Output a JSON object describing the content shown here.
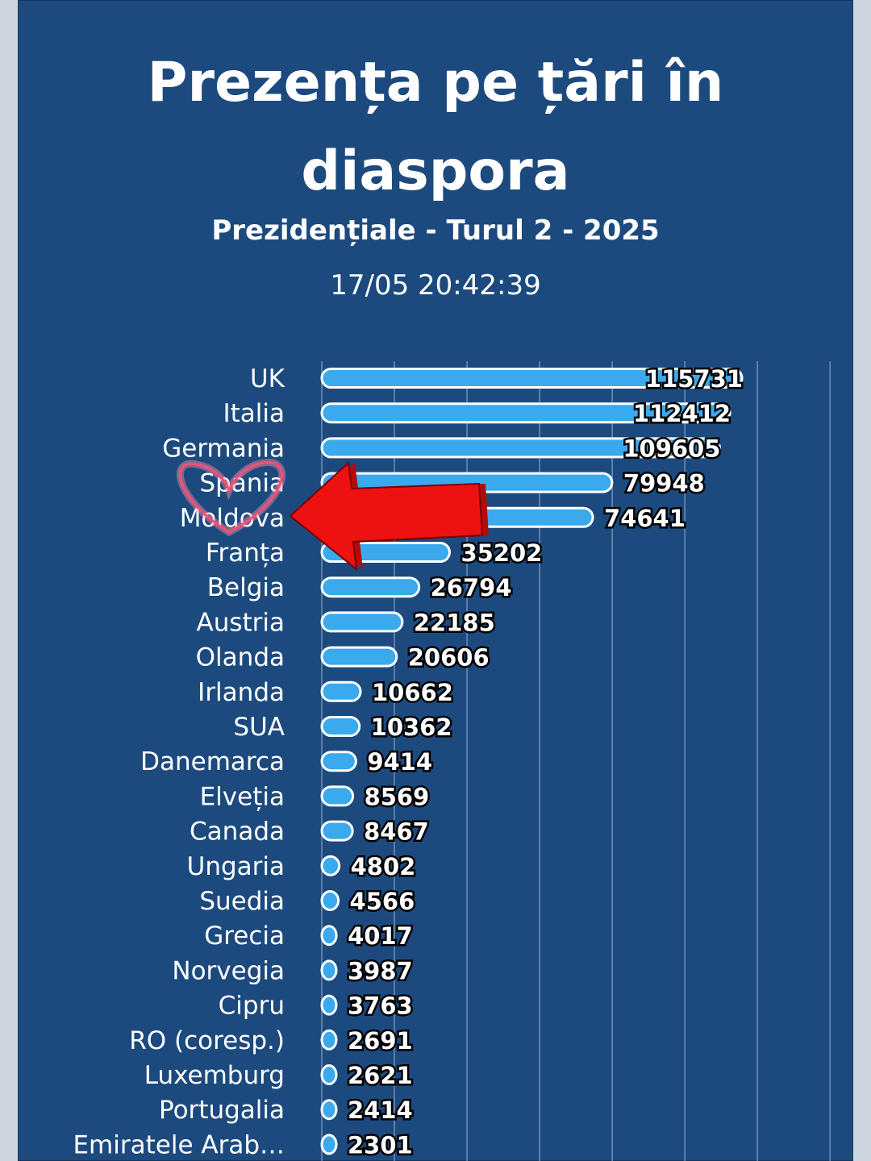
{
  "header": {
    "title_line1": "Prezența pe țări în",
    "title_line2": "diaspora",
    "subtitle": "Prezidențiale - Turul 2 - 2025",
    "timestamp": "17/05 20:42:39"
  },
  "colors": {
    "background": "#1c4a7e",
    "bar": "#3aa9ee",
    "arrow": "#ee1111",
    "heart": "#ff5c7a"
  },
  "annotations": {
    "arrow": "red-arrow-icon",
    "heart": "heart-outline-icon"
  },
  "chart_data": {
    "type": "bar",
    "orientation": "horizontal",
    "title": "Prezența pe țări în diaspora",
    "subtitle": "Prezidențiale - Turul 2 - 2025",
    "grid": true,
    "xlim": [
      0,
      140000
    ],
    "categories": [
      "UK",
      "Italia",
      "Germania",
      "Spania",
      "Moldova",
      "Franța",
      "Belgia",
      "Austria",
      "Olanda",
      "Irlanda",
      "SUA",
      "Danemarca",
      "Elveția",
      "Canada",
      "Ungaria",
      "Suedia",
      "Grecia",
      "Norvegia",
      "Cipru",
      "RO (coresp.)",
      "Luxemburg",
      "Portugalia",
      "Emiratele Arab…"
    ],
    "values": [
      115731,
      112412,
      109605,
      79948,
      74641,
      35202,
      26794,
      22185,
      20606,
      10662,
      10362,
      9414,
      8569,
      8467,
      4802,
      4566,
      4017,
      3987,
      3763,
      2691,
      2621,
      2414,
      2301
    ]
  }
}
